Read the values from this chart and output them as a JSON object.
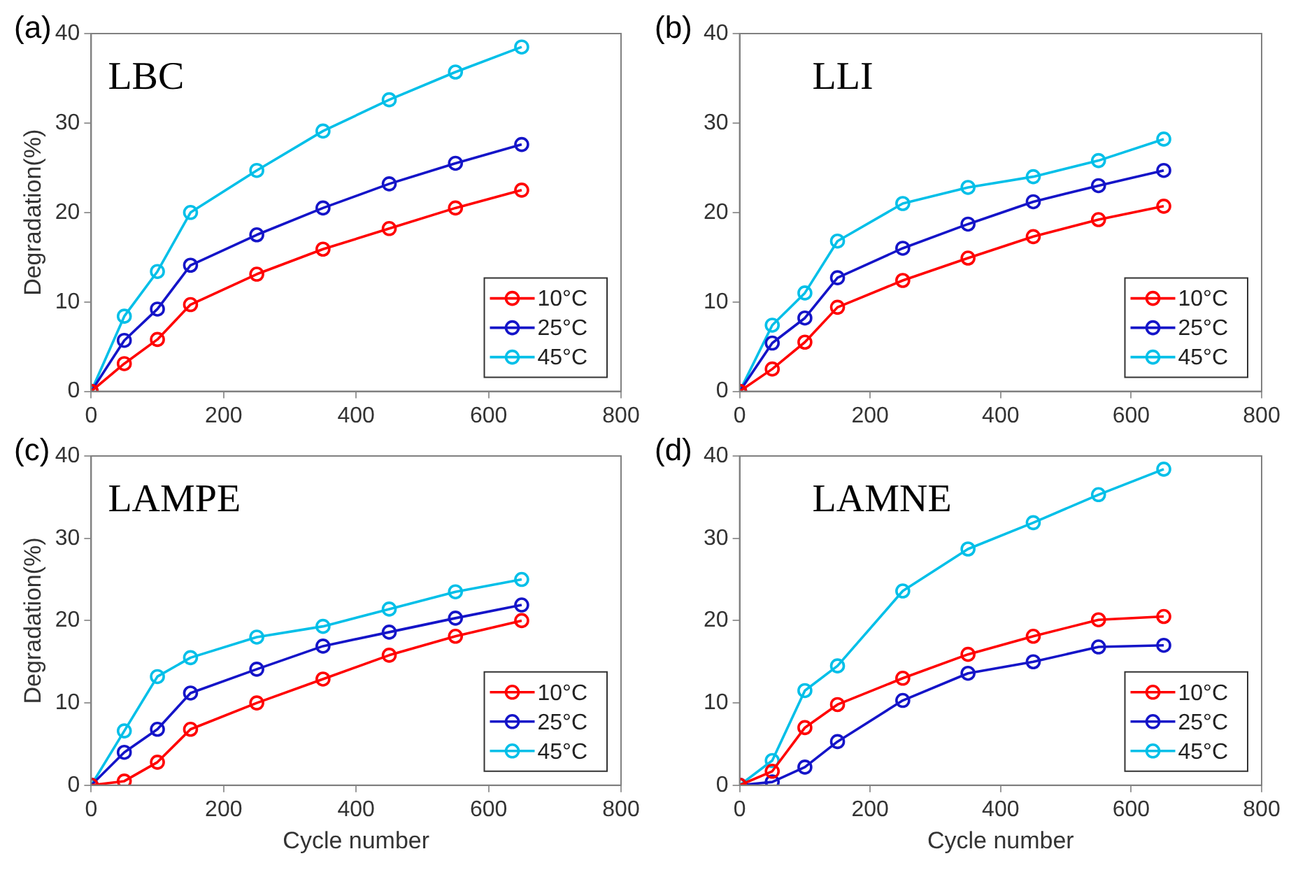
{
  "chart_data": [
    {
      "type": "line",
      "title": "(a)",
      "annotations": [
        "LBC"
      ],
      "ylabel": "Degradation(%)",
      "x": [
        0,
        50,
        100,
        150,
        250,
        350,
        450,
        550,
        650
      ],
      "xlim": [
        0,
        800
      ],
      "xticks": [
        0,
        200,
        400,
        600,
        800
      ],
      "ylim": [
        0,
        40
      ],
      "yticks": [
        0,
        10,
        20,
        30,
        40
      ],
      "legend": "bottom right",
      "marker": "circle",
      "grid": false,
      "series": [
        {
          "name": "10°C",
          "color": "#ff0000",
          "values": [
            0,
            3.1,
            5.8,
            9.7,
            13.1,
            15.9,
            18.2,
            20.5,
            22.5
          ]
        },
        {
          "name": "25°C",
          "color": "#1414c8",
          "values": [
            0,
            5.7,
            9.2,
            14.1,
            17.5,
            20.5,
            23.2,
            25.5,
            27.6
          ]
        },
        {
          "name": "45°C",
          "color": "#00bfe8",
          "values": [
            0,
            8.4,
            13.4,
            20.0,
            24.7,
            29.1,
            32.6,
            35.7,
            38.5
          ]
        }
      ]
    },
    {
      "type": "line",
      "title": "(b)",
      "annotations": [
        "LLI"
      ],
      "x": [
        0,
        50,
        100,
        150,
        250,
        350,
        450,
        550,
        650
      ],
      "xlim": [
        0,
        800
      ],
      "xticks": [
        0,
        200,
        400,
        600,
        800
      ],
      "ylim": [
        0,
        40
      ],
      "yticks": [
        0,
        10,
        20,
        30,
        40
      ],
      "legend": "bottom right",
      "marker": "circle",
      "grid": false,
      "series": [
        {
          "name": "10°C",
          "color": "#ff0000",
          "values": [
            0,
            2.5,
            5.5,
            9.4,
            12.4,
            14.9,
            17.3,
            19.2,
            20.7
          ]
        },
        {
          "name": "25°C",
          "color": "#1414c8",
          "values": [
            0,
            5.4,
            8.2,
            12.7,
            16.0,
            18.7,
            21.2,
            23.0,
            24.7
          ]
        },
        {
          "name": "45°C",
          "color": "#00bfe8",
          "values": [
            0,
            7.4,
            11.0,
            16.8,
            21.0,
            22.8,
            24.0,
            25.8,
            28.2
          ]
        }
      ]
    },
    {
      "type": "line",
      "title": "(c)",
      "annotations": [
        "LAMPE"
      ],
      "xlabel": "Cycle number",
      "ylabel": "Degradation(%)",
      "x": [
        0,
        50,
        100,
        150,
        250,
        350,
        450,
        550,
        650
      ],
      "xlim": [
        0,
        800
      ],
      "xticks": [
        0,
        200,
        400,
        600,
        800
      ],
      "ylim": [
        0,
        40
      ],
      "yticks": [
        0,
        10,
        20,
        30,
        40
      ],
      "legend": "bottom right",
      "marker": "circle",
      "grid": false,
      "series": [
        {
          "name": "10°C",
          "color": "#ff0000",
          "values": [
            0,
            0.5,
            2.8,
            6.8,
            10.0,
            12.9,
            15.8,
            18.1,
            20.0
          ]
        },
        {
          "name": "25°C",
          "color": "#1414c8",
          "values": [
            0,
            4.0,
            6.8,
            11.2,
            14.1,
            16.9,
            18.6,
            20.3,
            21.9
          ]
        },
        {
          "name": "45°C",
          "color": "#00bfe8",
          "values": [
            0,
            6.6,
            13.2,
            15.5,
            18.0,
            19.3,
            21.4,
            23.5,
            25.0
          ]
        }
      ]
    },
    {
      "type": "line",
      "title": "(d)",
      "annotations": [
        "LAMNE"
      ],
      "xlabel": "Cycle number",
      "x": [
        0,
        50,
        100,
        150,
        250,
        350,
        450,
        550,
        650
      ],
      "xlim": [
        0,
        800
      ],
      "xticks": [
        0,
        200,
        400,
        600,
        800
      ],
      "ylim": [
        0,
        40
      ],
      "yticks": [
        0,
        10,
        20,
        30,
        40
      ],
      "legend": "bottom right",
      "marker": "circle",
      "grid": false,
      "series": [
        {
          "name": "10°C",
          "color": "#ff0000",
          "values": [
            0,
            1.7,
            7.0,
            9.8,
            13.0,
            15.9,
            18.1,
            20.1,
            20.5
          ]
        },
        {
          "name": "25°C",
          "color": "#1414c8",
          "values": [
            0,
            0.4,
            2.2,
            5.3,
            10.3,
            13.6,
            15.0,
            16.8,
            17.0
          ]
        },
        {
          "name": "45°C",
          "color": "#00bfe8",
          "values": [
            0,
            3.0,
            11.5,
            14.5,
            23.6,
            28.7,
            31.9,
            35.3,
            38.4
          ]
        }
      ]
    }
  ]
}
